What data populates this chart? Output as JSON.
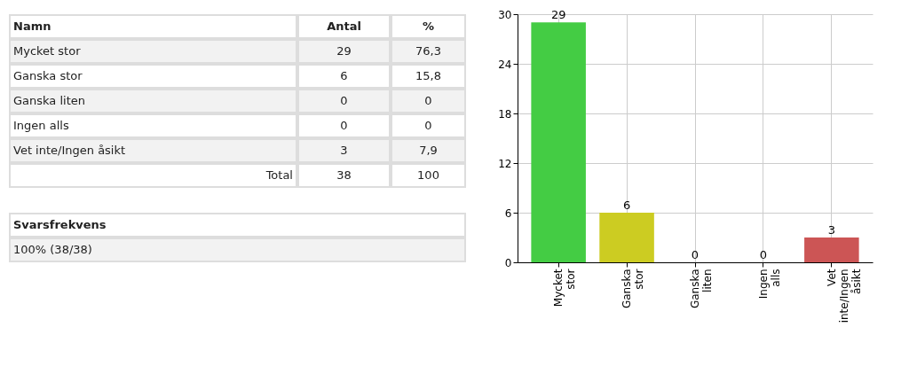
{
  "chart_data": {
    "type": "bar",
    "categories": [
      "Mycket stor",
      "Ganska stor",
      "Ganska liten",
      "Ingen alls",
      "Vet inte/Ingen åsikt"
    ],
    "values": [
      29,
      6,
      0,
      0,
      3
    ],
    "colors": [
      "#44cc44",
      "#cccc22",
      "#999999",
      "#999999",
      "#cc5555"
    ],
    "ylim": [
      0,
      30
    ],
    "yticks": [
      0,
      6,
      12,
      18,
      24,
      30
    ],
    "grid": true,
    "data_labels": true,
    "annotations": [
      "Namn",
      "Antal",
      "%",
      "29",
      "6",
      "0",
      "0",
      "3",
      "76,3",
      "15,8",
      "0",
      "0",
      "7,9",
      "Total",
      "38",
      "100",
      "Svarsfrekvens",
      "100% (38/38)"
    ]
  }
}
